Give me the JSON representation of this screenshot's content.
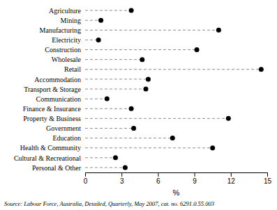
{
  "chart_data": {
    "type": "dot",
    "orientation": "horizontal",
    "categories": [
      "Agriculture",
      "Mining",
      "Manufacturing",
      "Electricity",
      "Construction",
      "Wholesale",
      "Retail",
      "Accommodation",
      "Transport & Storage",
      "Communication",
      "Finance & Insurance",
      "Property & Business",
      "Government",
      "Education",
      "Health & Community",
      "Cultural & Recreational",
      "Personal & Other"
    ],
    "values": [
      3.8,
      1.3,
      11.0,
      1.1,
      9.2,
      4.7,
      14.5,
      5.2,
      5.0,
      1.8,
      3.8,
      11.8,
      4.0,
      7.2,
      10.5,
      2.5,
      3.3
    ],
    "xlim": [
      0,
      15
    ],
    "xticks": [
      0,
      3,
      6,
      9,
      12,
      15
    ],
    "xlabel": "%",
    "source": "Source: Labour Force, Australia, Detailed, Quarterly, May 2007, cat. no. 6291.0.55.003",
    "color": "#000000",
    "line_style": "dashed",
    "marker": "circle",
    "grid": false
  }
}
